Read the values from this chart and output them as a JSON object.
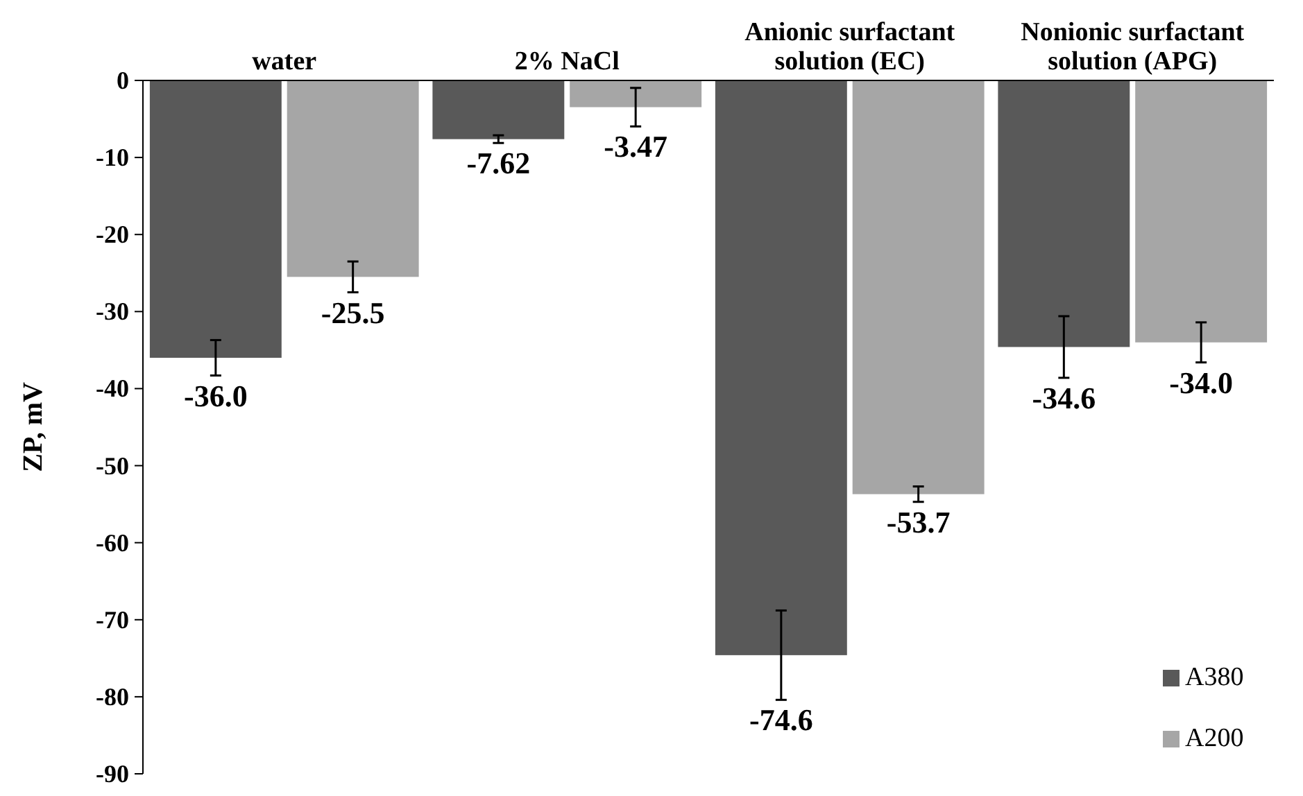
{
  "chart_data": {
    "type": "bar",
    "ylabel": "ZP, mV",
    "categories": [
      "water",
      "2% NaCl",
      "Anionic surfactant solution (EC)",
      "Nonionic surfactant solution (APG)"
    ],
    "series": [
      {
        "name": "A380",
        "color": "#595959",
        "values": [
          -36.0,
          -7.62,
          -74.6,
          -34.6
        ],
        "errors": [
          2.3,
          0.5,
          5.8,
          4
        ],
        "value_labels": [
          "-36.0",
          "-7.62",
          "-74.6",
          "-34.6"
        ]
      },
      {
        "name": "A200",
        "color": "#a6a6a6",
        "values": [
          -25.5,
          -3.47,
          -53.7,
          -34.0
        ],
        "errors": [
          2,
          2.5,
          1,
          2.6
        ],
        "value_labels": [
          "-25.5",
          "-3.47",
          "-53.7",
          "-34.0"
        ]
      }
    ],
    "ylim": [
      -90,
      0
    ],
    "yticks": [
      -90,
      -80,
      -70,
      -60,
      -50,
      -40,
      -30,
      -20,
      -10,
      0
    ],
    "legend": "bottom right"
  }
}
